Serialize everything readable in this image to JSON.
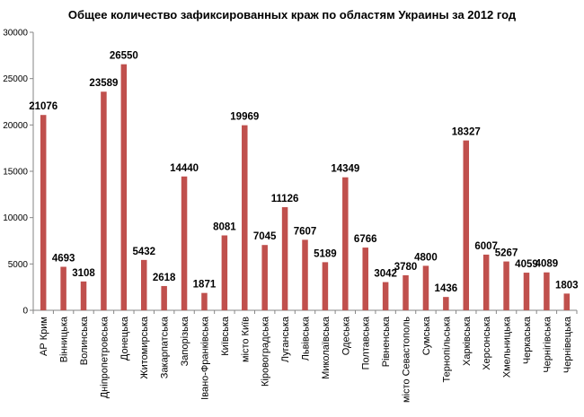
{
  "chart_data": {
    "type": "bar",
    "title": "Общее количество зафиксированных краж по   областям Украины за 2012 год",
    "xlabel": "",
    "ylabel": "",
    "ylim": [
      0,
      30000
    ],
    "yticks": [
      0,
      5000,
      10000,
      15000,
      20000,
      25000,
      30000
    ],
    "grid": false,
    "legend": "none",
    "bar_color": "#c0504d",
    "categories": [
      "АР Крим",
      "Вінницька",
      "Волинська",
      "Дніпропетровська",
      "Донецька",
      "Житомирська",
      "Закарпатська",
      "Запорізька",
      "Івано-Франківська",
      "Київська",
      "місто Київ",
      "Кіровоградська",
      "Луганська",
      "Львівська",
      "Миколаївська",
      "Одеська",
      "Полтавська",
      "Рівненська",
      "місто Севастополь",
      "Сумська",
      "Тернопільська",
      "Харківська",
      "Херсонська",
      "Хмельницька",
      "Черкаська",
      "Чернігівська",
      "Чернівецька"
    ],
    "values": [
      21076,
      4693,
      3108,
      23589,
      26550,
      5432,
      2618,
      14440,
      1871,
      8081,
      19969,
      7045,
      11126,
      7607,
      5189,
      14349,
      6766,
      3042,
      3780,
      4800,
      1436,
      18327,
      6007,
      5267,
      4059,
      4089,
      1803
    ]
  }
}
